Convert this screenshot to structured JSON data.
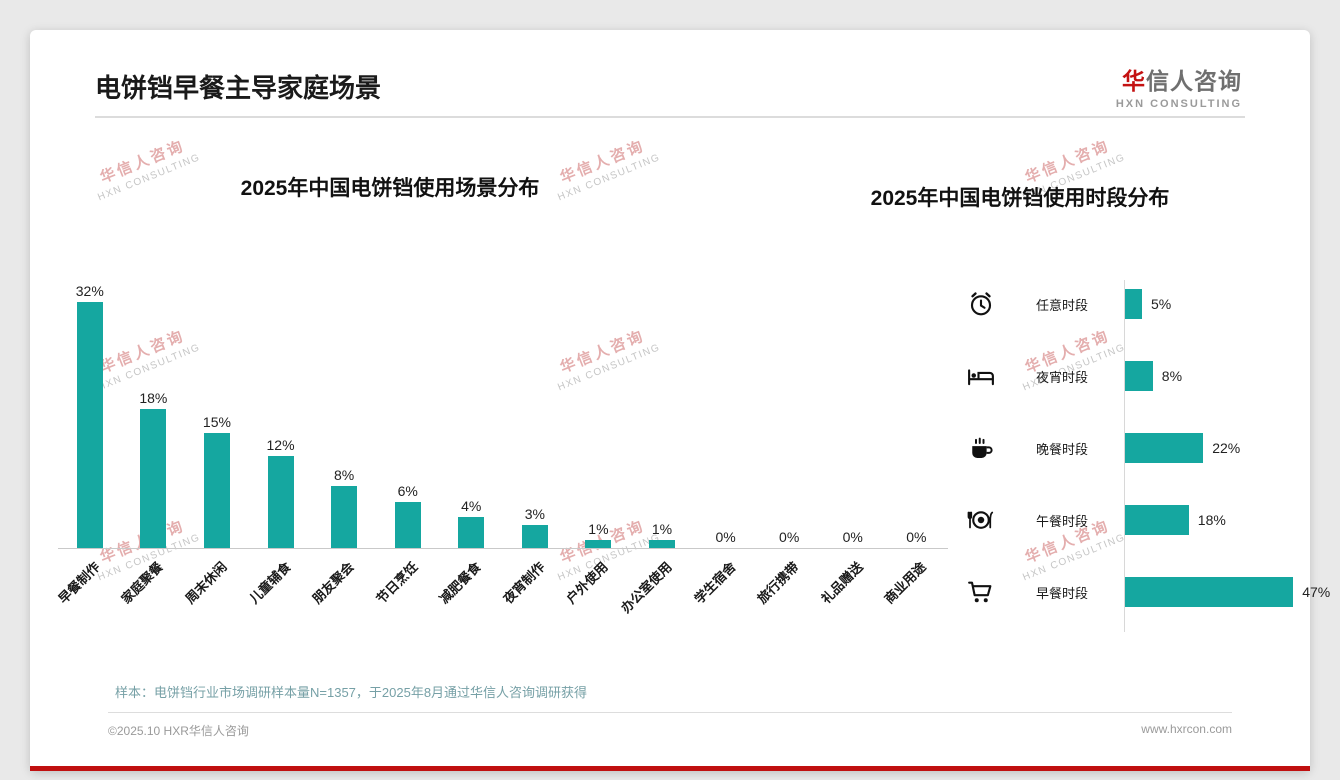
{
  "page": {
    "title": "电饼铛早餐主导家庭场景",
    "logo_cn_first": "华",
    "logo_cn_rest": "信人咨询",
    "logo_en": "HXN CONSULTING",
    "watermark_cn": "华信人咨询",
    "watermark_en": "HXN CONSULTING",
    "footnote": "样本：电饼铛行业市场调研样本量N=1357，于2025年8月通过华信人咨询调研获得",
    "footer_left": "©2025.10 HXR华信人咨询",
    "footer_right": "www.hxrcon.com",
    "accent_color": "#c01010",
    "bar_color": "#15a7a0"
  },
  "chart_data": [
    {
      "type": "bar",
      "orientation": "vertical",
      "title": "2025年中国电饼铛使用场景分布",
      "categories": [
        "早餐制作",
        "家庭聚餐",
        "周末休闲",
        "儿童辅食",
        "朋友聚会",
        "节日烹饪",
        "减肥餐食",
        "夜宵制作",
        "户外使用",
        "办公室使用",
        "学生宿舍",
        "旅行携带",
        "礼品赠送",
        "商业用途"
      ],
      "values": [
        32,
        18,
        15,
        12,
        8,
        6,
        4,
        3,
        1,
        1,
        0,
        0,
        0,
        0
      ],
      "unit": "%",
      "ylim": [
        0,
        35
      ],
      "bar_color": "#15a7a0",
      "grid": false,
      "value_labels": true
    },
    {
      "type": "bar",
      "orientation": "horizontal",
      "title": "2025年中国电饼铛使用时段分布",
      "categories": [
        "任意时段",
        "夜宵时段",
        "晚餐时段",
        "午餐时段",
        "早餐时段"
      ],
      "values": [
        5,
        8,
        22,
        18,
        47
      ],
      "icons": [
        "alarm-clock-icon",
        "bed-icon",
        "coffee-cup-icon",
        "plate-cutlery-icon",
        "shopping-cart-icon"
      ],
      "unit": "%",
      "xlim": [
        0,
        50
      ],
      "bar_color": "#15a7a0",
      "grid": false,
      "value_labels": true
    }
  ]
}
